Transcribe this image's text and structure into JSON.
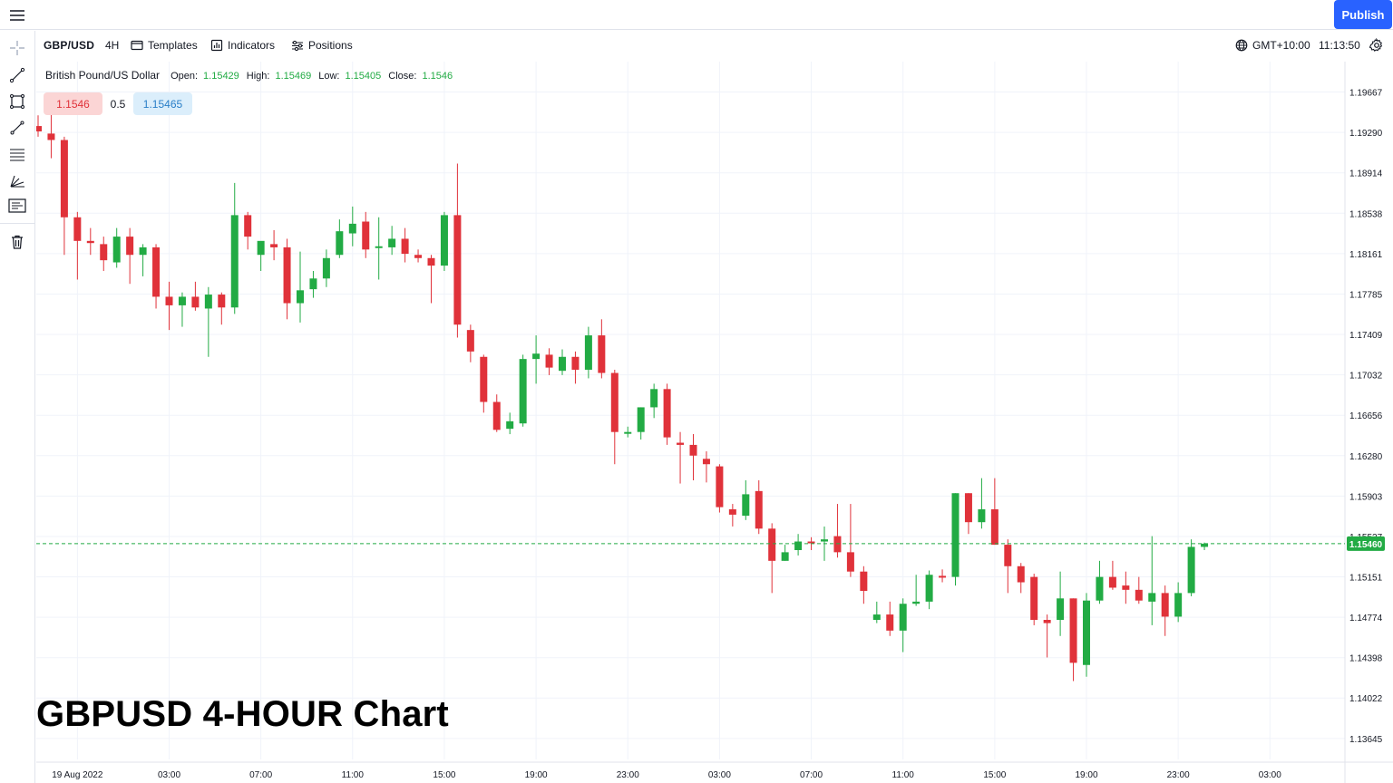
{
  "header": {
    "menu_icon": "hamburger-menu-icon",
    "publish_label": "Publish"
  },
  "toolbar": {
    "symbol": "GBP/USD",
    "interval": "4H",
    "templates_label": "Templates",
    "indicators_label": "Indicators",
    "positions_label": "Positions",
    "timezone": "GMT+10:00",
    "clock": "11:13:50"
  },
  "left_tools": [
    "crosshair-icon",
    "trend-line-icon",
    "rectangle-icon",
    "brush-icon",
    "fib-levels-icon",
    "pitchfork-icon",
    "text-note-icon",
    "trash-icon"
  ],
  "legend": {
    "name": "British Pound/US Dollar",
    "open_label": "Open:",
    "open": "1.15429",
    "high_label": "High:",
    "high": "1.15469",
    "low_label": "Low:",
    "low": "1.15405",
    "close_label": "Close:",
    "close": "1.1546"
  },
  "quote": {
    "bid": "1.1546",
    "spread": "0.5",
    "ask": "1.15465"
  },
  "overlay_title": "GBPUSD 4-HOUR Chart",
  "colors": {
    "up": "#22ab44",
    "down": "#e0323a",
    "price_line": "#22ab44",
    "grid": "#f0f3fa",
    "accent": "#2962ff"
  },
  "chart_data": {
    "type": "candlestick",
    "ylim": [
      1.1345,
      1.1995
    ],
    "y_ticks": [
      "1.19667",
      "1.19290",
      "1.18914",
      "1.18538",
      "1.18161",
      "1.17785",
      "1.17409",
      "1.17032",
      "1.16656",
      "1.16280",
      "1.15903",
      "1.15527",
      "1.15151",
      "1.14774",
      "1.14398",
      "1.14022",
      "1.13645"
    ],
    "x_ticks": [
      {
        "label": "19 Aug 2022",
        "index": 3
      },
      {
        "label": "03:00",
        "index": 10
      },
      {
        "label": "07:00",
        "index": 17
      },
      {
        "label": "11:00",
        "index": 24
      },
      {
        "label": "15:00",
        "index": 31
      },
      {
        "label": "19:00",
        "index": 38
      },
      {
        "label": "23:00",
        "index": 45
      },
      {
        "label": "03:00",
        "index": 52
      },
      {
        "label": "07:00",
        "index": 59
      },
      {
        "label": "11:00",
        "index": 66
      },
      {
        "label": "15:00",
        "index": 73
      },
      {
        "label": "19:00",
        "index": 80
      },
      {
        "label": "23:00",
        "index": 87
      },
      {
        "label": "03:00",
        "index": 94
      }
    ],
    "current_price": "1.15460",
    "current_price_value": 1.1546,
    "candles": [
      [
        1.1935,
        1.1945,
        1.1925,
        1.193
      ],
      [
        1.1928,
        1.195,
        1.1905,
        1.1922
      ],
      [
        1.1922,
        1.1925,
        1.1815,
        1.185
      ],
      [
        1.185,
        1.1855,
        1.1792,
        1.1828
      ],
      [
        1.1828,
        1.184,
        1.1815,
        1.1826
      ],
      [
        1.1825,
        1.1832,
        1.18,
        1.181
      ],
      [
        1.1808,
        1.184,
        1.1803,
        1.1832
      ],
      [
        1.1832,
        1.184,
        1.1788,
        1.1815
      ],
      [
        1.1815,
        1.1825,
        1.1795,
        1.1822
      ],
      [
        1.1822,
        1.1825,
        1.1765,
        1.1776
      ],
      [
        1.1776,
        1.179,
        1.1745,
        1.1768
      ],
      [
        1.1768,
        1.178,
        1.1748,
        1.1776
      ],
      [
        1.1776,
        1.179,
        1.1763,
        1.1766
      ],
      [
        1.1765,
        1.1785,
        1.172,
        1.1778
      ],
      [
        1.1778,
        1.178,
        1.175,
        1.1766
      ],
      [
        1.1766,
        1.1882,
        1.176,
        1.1852
      ],
      [
        1.1852,
        1.1855,
        1.182,
        1.1832
      ],
      [
        1.1815,
        1.1825,
        1.18,
        1.1828
      ],
      [
        1.1825,
        1.1838,
        1.181,
        1.1822
      ],
      [
        1.1822,
        1.183,
        1.1755,
        1.177
      ],
      [
        1.177,
        1.1818,
        1.1752,
        1.1782
      ],
      [
        1.1783,
        1.18,
        1.1775,
        1.1793
      ],
      [
        1.1793,
        1.182,
        1.1785,
        1.1812
      ],
      [
        1.1815,
        1.1848,
        1.1812,
        1.1837
      ],
      [
        1.1835,
        1.186,
        1.1823,
        1.1844
      ],
      [
        1.1846,
        1.1855,
        1.1812,
        1.182
      ],
      [
        1.1822,
        1.185,
        1.1792,
        1.1823
      ],
      [
        1.1822,
        1.1842,
        1.1815,
        1.183
      ],
      [
        1.183,
        1.184,
        1.1808,
        1.1816
      ],
      [
        1.1815,
        1.182,
        1.1808,
        1.1812
      ],
      [
        1.1812,
        1.1815,
        1.177,
        1.1805
      ],
      [
        1.1805,
        1.1855,
        1.18,
        1.1852
      ],
      [
        1.1852,
        1.19,
        1.1738,
        1.175
      ],
      [
        1.1745,
        1.175,
        1.1715,
        1.1725
      ],
      [
        1.172,
        1.1722,
        1.1668,
        1.1678
      ],
      [
        1.1678,
        1.1685,
        1.165,
        1.1652
      ],
      [
        1.1653,
        1.1668,
        1.1648,
        1.166
      ],
      [
        1.1658,
        1.1722,
        1.1655,
        1.1718
      ],
      [
        1.1718,
        1.174,
        1.1695,
        1.1723
      ],
      [
        1.1722,
        1.1728,
        1.1703,
        1.171
      ],
      [
        1.1707,
        1.1727,
        1.1703,
        1.172
      ],
      [
        1.172,
        1.1725,
        1.1695,
        1.1708
      ],
      [
        1.1708,
        1.1748,
        1.17,
        1.174
      ],
      [
        1.174,
        1.1755,
        1.17,
        1.1705
      ],
      [
        1.1705,
        1.1708,
        1.162,
        1.165
      ],
      [
        1.165,
        1.1655,
        1.1645,
        1.165
      ],
      [
        1.165,
        1.1673,
        1.1643,
        1.1673
      ],
      [
        1.1673,
        1.1695,
        1.1663,
        1.169
      ],
      [
        1.169,
        1.1695,
        1.1638,
        1.1645
      ],
      [
        1.164,
        1.165,
        1.1602,
        1.1638
      ],
      [
        1.1638,
        1.1648,
        1.1605,
        1.1628
      ],
      [
        1.1625,
        1.1632,
        1.1603,
        1.162
      ],
      [
        1.1618,
        1.162,
        1.1575,
        1.158
      ],
      [
        1.1578,
        1.1583,
        1.1562,
        1.1573
      ],
      [
        1.1572,
        1.1605,
        1.1568,
        1.1592
      ],
      [
        1.1595,
        1.1605,
        1.1555,
        1.156
      ],
      [
        1.156,
        1.1565,
        1.15,
        1.153
      ],
      [
        1.153,
        1.1545,
        1.153,
        1.1538
      ],
      [
        1.154,
        1.1555,
        1.1535,
        1.1548
      ],
      [
        1.1548,
        1.1552,
        1.154,
        1.1547
      ],
      [
        1.1548,
        1.1562,
        1.153,
        1.155
      ],
      [
        1.1553,
        1.1583,
        1.1533,
        1.1538
      ],
      [
        1.1538,
        1.1583,
        1.1515,
        1.152
      ],
      [
        1.152,
        1.1525,
        1.149,
        1.1502
      ],
      [
        1.1475,
        1.1492,
        1.1472,
        1.148
      ],
      [
        1.148,
        1.1492,
        1.146,
        1.1465
      ],
      [
        1.1465,
        1.1495,
        1.1445,
        1.149
      ],
      [
        1.149,
        1.1517,
        1.1488,
        1.1492
      ],
      [
        1.1492,
        1.1521,
        1.1485,
        1.1517
      ],
      [
        1.1516,
        1.1522,
        1.151,
        1.1515
      ],
      [
        1.1515,
        1.1593,
        1.1507,
        1.1593
      ],
      [
        1.1593,
        1.1593,
        1.1555,
        1.1566
      ],
      [
        1.1566,
        1.1607,
        1.156,
        1.1578
      ],
      [
        1.1578,
        1.1607,
        1.1545,
        1.1545
      ],
      [
        1.1545,
        1.155,
        1.15,
        1.1525
      ],
      [
        1.1525,
        1.1528,
        1.15,
        1.151
      ],
      [
        1.1515,
        1.1518,
        1.147,
        1.1475
      ],
      [
        1.1475,
        1.148,
        1.144,
        1.1472
      ],
      [
        1.1475,
        1.152,
        1.146,
        1.1495
      ],
      [
        1.1495,
        1.1495,
        1.1418,
        1.1435
      ],
      [
        1.1433,
        1.15,
        1.1422,
        1.1493
      ],
      [
        1.1493,
        1.153,
        1.149,
        1.1515
      ],
      [
        1.1515,
        1.153,
        1.1503,
        1.1505
      ],
      [
        1.1507,
        1.152,
        1.149,
        1.1503
      ],
      [
        1.1503,
        1.1515,
        1.149,
        1.1493
      ],
      [
        1.1492,
        1.1553,
        1.147,
        1.15
      ],
      [
        1.15,
        1.1507,
        1.146,
        1.1478
      ],
      [
        1.1478,
        1.151,
        1.1473,
        1.15
      ],
      [
        1.15,
        1.155,
        1.1497,
        1.1543
      ],
      [
        1.1543,
        1.1547,
        1.154,
        1.1546
      ]
    ]
  }
}
